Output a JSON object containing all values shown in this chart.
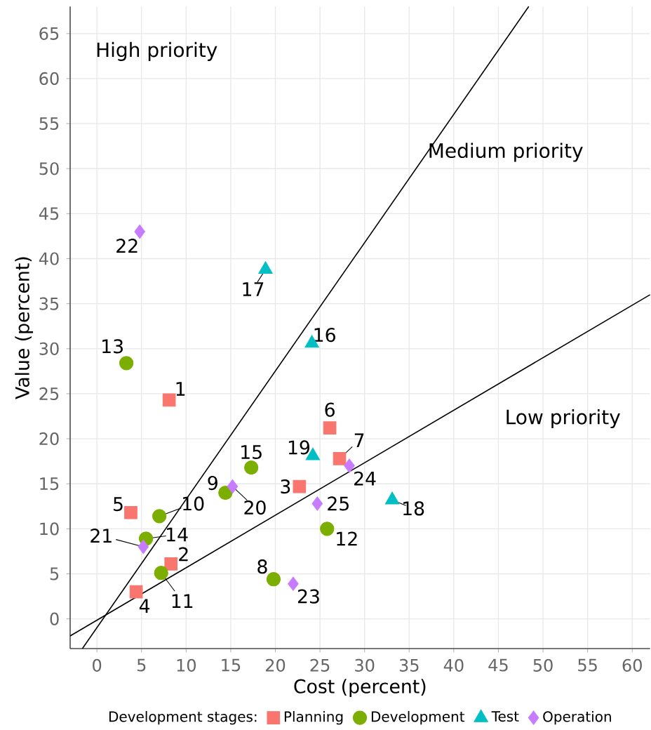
{
  "chart_data": {
    "type": "scatter",
    "xlabel": "Cost (percent)",
    "ylabel": "Value (percent)",
    "legend_title": "Development stages:",
    "xlim": [
      -3,
      62
    ],
    "ylim": [
      -3.3,
      68
    ],
    "xticks": [
      0,
      5,
      10,
      15,
      20,
      25,
      30,
      35,
      40,
      45,
      50,
      55,
      60
    ],
    "yticks": [
      0,
      5,
      10,
      15,
      20,
      25,
      30,
      35,
      40,
      45,
      50,
      55,
      60,
      65
    ],
    "grid": true,
    "legend": "bottom",
    "annotations": [
      "High priority",
      "Medium priority",
      "Low priority",
      {
        "text": "1",
        "x": 8.1,
        "y": 24.3
      },
      {
        "text": "2",
        "x": 8.3,
        "y": 6.1
      },
      {
        "text": "3",
        "x": 22.7,
        "y": 14.7
      },
      {
        "text": "4",
        "x": 4.4,
        "y": 3.0
      },
      {
        "text": "5",
        "x": 3.8,
        "y": 11.8
      },
      {
        "text": "6",
        "x": 26.1,
        "y": 21.2
      },
      {
        "text": "7",
        "x": 27.2,
        "y": 17.8
      },
      {
        "text": "8",
        "x": 19.8,
        "y": 4.4
      },
      {
        "text": "9",
        "x": 14.4,
        "y": 14.0
      },
      {
        "text": "10",
        "x": 7.0,
        "y": 11.4
      },
      {
        "text": "11",
        "x": 7.2,
        "y": 5.1
      },
      {
        "text": "12",
        "x": 25.8,
        "y": 10.0
      },
      {
        "text": "13",
        "x": 3.3,
        "y": 28.4
      },
      {
        "text": "14",
        "x": 5.5,
        "y": 8.9
      },
      {
        "text": "15",
        "x": 17.3,
        "y": 16.8
      },
      {
        "text": "16",
        "x": 24.1,
        "y": 30.6
      },
      {
        "text": "17",
        "x": 18.9,
        "y": 38.8
      },
      {
        "text": "18",
        "x": 33.1,
        "y": 13.2
      },
      {
        "text": "19",
        "x": 24.2,
        "y": 18.1
      },
      {
        "text": "20",
        "x": 15.2,
        "y": 14.7
      },
      {
        "text": "21",
        "x": 5.2,
        "y": 8.0
      },
      {
        "text": "22",
        "x": 4.8,
        "y": 43.0
      },
      {
        "text": "23",
        "x": 22.0,
        "y": 3.9
      },
      {
        "text": "24",
        "x": 28.3,
        "y": 17.0
      },
      {
        "text": "25",
        "x": 24.7,
        "y": 12.8
      }
    ],
    "series": [
      {
        "name": "Planning",
        "color": "#f8766d",
        "marker": "square",
        "x": [
          8.1,
          8.3,
          22.7,
          4.4,
          3.8,
          26.1,
          27.2
        ],
        "values": [
          24.3,
          6.1,
          14.7,
          3.0,
          11.8,
          21.2,
          17.8
        ]
      },
      {
        "name": "Development",
        "color": "#7cae00",
        "marker": "circle",
        "x": [
          19.8,
          14.4,
          7.0,
          7.2,
          25.8,
          3.3,
          5.5,
          17.3
        ],
        "values": [
          4.4,
          14.0,
          11.4,
          5.1,
          10.0,
          28.4,
          8.9,
          16.8
        ]
      },
      {
        "name": "Test",
        "color": "#00bfc4",
        "marker": "triangle",
        "x": [
          24.1,
          18.9,
          33.1,
          24.2
        ],
        "values": [
          30.6,
          38.8,
          13.2,
          18.1
        ]
      },
      {
        "name": "Operation",
        "color": "#c77cff",
        "marker": "diamond",
        "x": [
          15.2,
          5.2,
          4.8,
          22.0,
          28.3,
          24.7
        ],
        "values": [
          14.7,
          8.0,
          43.0,
          3.9,
          17.0,
          12.8
        ]
      },
      {
        "type": "line",
        "color": "#000000",
        "marker": "none",
        "x": [
          -1.63,
          48.4
        ],
        "values": [
          -3.3,
          68.0
        ]
      },
      {
        "type": "line",
        "color": "#000000",
        "marker": "none",
        "x": [
          -3.0,
          62.0
        ],
        "values": [
          -1.9,
          36.0
        ]
      }
    ]
  }
}
